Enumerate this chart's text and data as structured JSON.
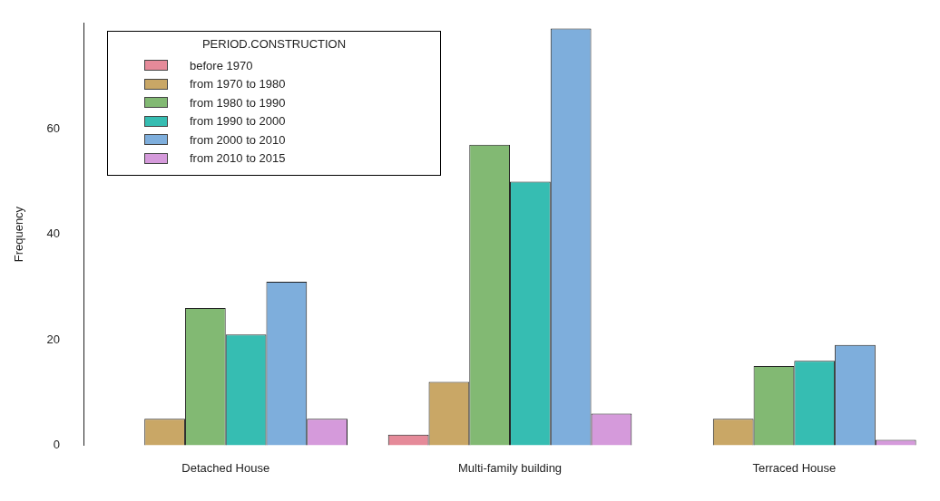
{
  "chart_data": {
    "type": "bar",
    "ylabel": "Frequency",
    "legend_title": "PERIOD.CONSTRUCTION",
    "legend": "top left",
    "grid": false,
    "categories": [
      "Detached House",
      "Multi-family building",
      "Terraced House"
    ],
    "ylim": [
      0,
      80
    ],
    "yticks": [
      0,
      20,
      40,
      60
    ],
    "series": [
      {
        "name": "before 1970",
        "color": "#e58a99",
        "values": [
          0,
          2,
          0
        ]
      },
      {
        "name": "from 1970 to 1980",
        "color": "#c9a766",
        "values": [
          5,
          12,
          5
        ]
      },
      {
        "name": "from 1980 to 1990",
        "color": "#82b973",
        "values": [
          26,
          57,
          15
        ]
      },
      {
        "name": "from 1990 to 2000",
        "color": "#36bdb2",
        "values": [
          21,
          50,
          16
        ]
      },
      {
        "name": "from 2000 to 2010",
        "color": "#7eaedc",
        "values": [
          31,
          79,
          19
        ]
      },
      {
        "name": "from 2010 to 2015",
        "color": "#d59adb",
        "values": [
          5,
          6,
          1
        ]
      }
    ]
  }
}
